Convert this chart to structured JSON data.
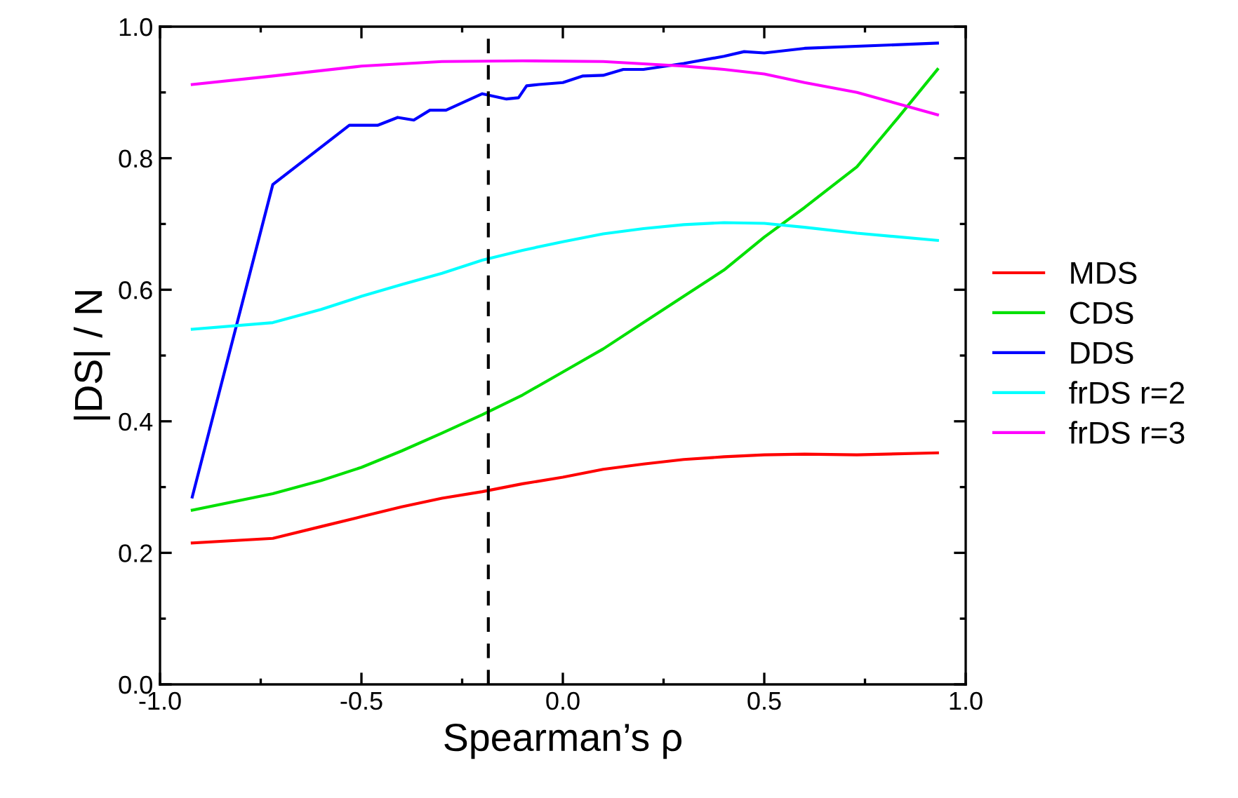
{
  "chart_data": {
    "type": "line",
    "xlabel": "Spearman’s ρ",
    "ylabel": "|DS| / N",
    "xlim": [
      -1.0,
      1.0
    ],
    "xticks": [
      {
        "value": -1.0,
        "label": "-1.0"
      },
      {
        "value": -0.5,
        "label": "-0.5"
      },
      {
        "value": 0.0,
        "label": "0.0"
      },
      {
        "value": 0.5,
        "label": "0.5"
      },
      {
        "value": 1.0,
        "label": "1.0"
      }
    ],
    "ylim": [
      0.0,
      1.0
    ],
    "yticks": [
      {
        "value": 0.0,
        "label": "0.0"
      },
      {
        "value": 0.2,
        "label": "0.2"
      },
      {
        "value": 0.4,
        "label": "0.4"
      },
      {
        "value": 0.6,
        "label": "0.6"
      },
      {
        "value": 0.8,
        "label": "0.8"
      },
      {
        "value": 1.0,
        "label": "1.0"
      }
    ],
    "grid": false,
    "legend": "right",
    "ref_lines": [
      {
        "axis": "x",
        "value": -0.185,
        "color": "#000000",
        "line_style": "dashed"
      }
    ],
    "series": [
      {
        "name": "MDS",
        "color": "#ff0000",
        "x": [
          -0.92,
          -0.72,
          -0.6,
          -0.5,
          -0.4,
          -0.3,
          -0.2,
          -0.1,
          0,
          0.1,
          0.2,
          0.3,
          0.4,
          0.5,
          0.6,
          0.73,
          0.93
        ],
        "values": [
          0.215,
          0.222,
          0.24,
          0.255,
          0.27,
          0.283,
          0.293,
          0.305,
          0.315,
          0.327,
          0.335,
          0.342,
          0.346,
          0.349,
          0.35,
          0.349,
          0.352
        ]
      },
      {
        "name": "CDS",
        "color": "#00e000",
        "x": [
          -0.92,
          -0.72,
          -0.6,
          -0.5,
          -0.4,
          -0.3,
          -0.2,
          -0.1,
          0,
          0.1,
          0.2,
          0.3,
          0.4,
          0.5,
          0.6,
          0.73,
          0.83,
          0.93
        ],
        "values": [
          0.265,
          0.29,
          0.31,
          0.33,
          0.355,
          0.382,
          0.41,
          0.44,
          0.475,
          0.51,
          0.55,
          0.59,
          0.63,
          0.68,
          0.725,
          0.787,
          0.86,
          0.935
        ]
      },
      {
        "name": "DDS",
        "color": "#0000ff",
        "x": [
          -0.92,
          -0.72,
          -0.53,
          -0.46,
          -0.41,
          -0.37,
          -0.33,
          -0.29,
          -0.2,
          -0.14,
          -0.11,
          -0.09,
          -0.06,
          0.0,
          0.05,
          0.1,
          0.15,
          0.2,
          0.3,
          0.4,
          0.45,
          0.5,
          0.6,
          0.93
        ],
        "values": [
          0.285,
          0.76,
          0.85,
          0.85,
          0.862,
          0.858,
          0.873,
          0.873,
          0.898,
          0.89,
          0.892,
          0.91,
          0.912,
          0.915,
          0.925,
          0.926,
          0.935,
          0.935,
          0.944,
          0.955,
          0.962,
          0.96,
          0.967,
          0.975
        ]
      },
      {
        "name": "frDS r=2",
        "color": "#00ffff",
        "x": [
          -0.92,
          -0.72,
          -0.6,
          -0.5,
          -0.4,
          -0.3,
          -0.2,
          -0.1,
          0,
          0.1,
          0.2,
          0.3,
          0.4,
          0.5,
          0.6,
          0.73,
          0.93
        ],
        "values": [
          0.54,
          0.55,
          0.57,
          0.59,
          0.608,
          0.625,
          0.645,
          0.66,
          0.673,
          0.685,
          0.693,
          0.699,
          0.702,
          0.701,
          0.695,
          0.686,
          0.675
        ]
      },
      {
        "name": "frDS r=3",
        "color": "#ff00ff",
        "x": [
          -0.92,
          -0.72,
          -0.5,
          -0.3,
          -0.1,
          0.1,
          0.3,
          0.4,
          0.5,
          0.6,
          0.73,
          0.93
        ],
        "values": [
          0.912,
          0.925,
          0.94,
          0.947,
          0.948,
          0.947,
          0.94,
          0.935,
          0.928,
          0.915,
          0.9,
          0.866
        ]
      }
    ]
  }
}
